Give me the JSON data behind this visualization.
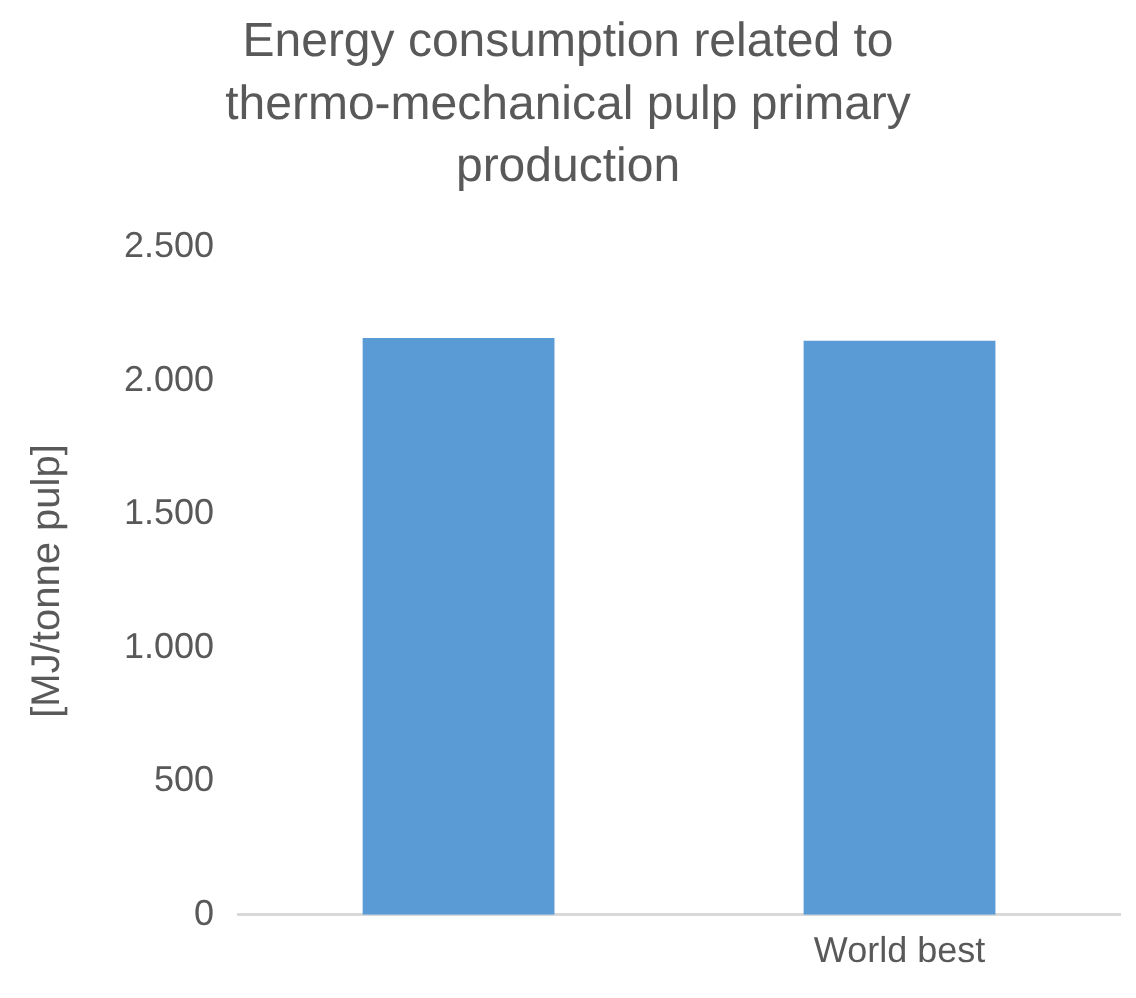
{
  "chart_data": {
    "type": "bar",
    "title": "Energy consumption related to thermo-mechanical pulp primary production",
    "ylabel": "[MJ/tonne pulp]",
    "categories": [
      null,
      "World best"
    ],
    "values": [
      2160,
      2150
    ],
    "color": "#5b9bd5",
    "ylim": [
      0,
      2500
    ],
    "yticks": [
      {
        "value": 0,
        "label": "0"
      },
      {
        "value": 500,
        "label": "500"
      },
      {
        "value": 1000,
        "label": "1.000"
      },
      {
        "value": 1500,
        "label": "1.500"
      },
      {
        "value": 2000,
        "label": "2.000"
      },
      {
        "value": 2500,
        "label": "2.500"
      }
    ],
    "grid": false,
    "legend": false
  }
}
